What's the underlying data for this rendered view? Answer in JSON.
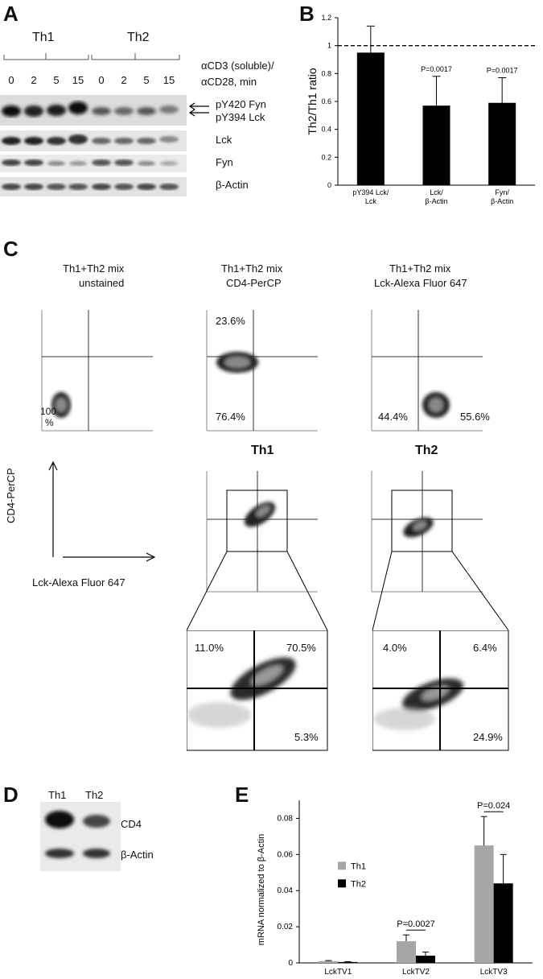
{
  "panels": {
    "a": "A",
    "b": "B",
    "c": "C",
    "d": "D",
    "e": "E"
  },
  "panelA": {
    "group1": "Th1",
    "group2": "Th2",
    "timepoints": [
      "0",
      "2",
      "5",
      "15",
      "0",
      "2",
      "5",
      "15"
    ],
    "stim_line1": "αCD3 (soluble)/",
    "stim_line2": "αCD28, min",
    "bands": {
      "pfyn": "pY420 Fyn",
      "plck": "pY394 Lck",
      "lck": "Lck",
      "fyn": "Fyn",
      "actin": "β-Actin"
    }
  },
  "panelC": {
    "titles": [
      {
        "l1": "Th1+Th2 mix",
        "l2": "unstained"
      },
      {
        "l1": "Th1+Th2 mix",
        "l2": "CD4-PerCP"
      },
      {
        "l1": "Th1+Th2 mix",
        "l2": "Lck-Alexa Fluor 647"
      }
    ],
    "unstained_pct": "100",
    "unstained_pct2": "%",
    "cd4_top": "23.6%",
    "cd4_bottom": "76.4%",
    "lck_left": "44.4%",
    "lck_right": "55.6%",
    "th1": "Th1",
    "th2": "Th2",
    "yaxis": "CD4-PerCP",
    "xaxis": "Lck-Alexa Fluor 647",
    "th1_zoom": {
      "ul": "11.0%",
      "ur": "70.5%",
      "lr": "5.3%"
    },
    "th2_zoom": {
      "ul": "4.0%",
      "ur": "6.4%",
      "lr": "24.9%"
    }
  },
  "panelD": {
    "th1": "Th1",
    "th2": "Th2",
    "cd4": "CD4",
    "actin": "β-Actin"
  },
  "chart_data": [
    {
      "type": "bar",
      "panel": "B",
      "categories": [
        "pY394 Lck/\nLck",
        "Lck/\nβ-Actin",
        "Fyn/\nβ-Actin"
      ],
      "category_lines": [
        [
          "pY394 Lck/",
          "Lck"
        ],
        [
          "Lck/",
          "β-Actin"
        ],
        [
          "Fyn/",
          "β-Actin"
        ]
      ],
      "values": [
        0.95,
        0.57,
        0.59
      ],
      "errors": [
        0.19,
        0.21,
        0.18
      ],
      "pvalues": [
        "",
        "P=0.0017",
        "P=0.0017"
      ],
      "ylabel": "Th2/Th1 ratio",
      "ylim": [
        0,
        1.2
      ],
      "yticks": [
        "0",
        "0.2",
        "0.4",
        "0.6",
        "0.8",
        "1",
        "1.2"
      ],
      "reference_line": 1,
      "bar_color": "#000000"
    },
    {
      "type": "bar",
      "panel": "E",
      "categories": [
        "LckTV1",
        "LckTV2",
        "LckTV3"
      ],
      "series": [
        {
          "name": "Th1",
          "values": [
            0.001,
            0.012,
            0.065
          ],
          "errors": [
            0.0003,
            0.0035,
            0.016
          ],
          "color": "#a6a6a6"
        },
        {
          "name": "Th2",
          "values": [
            0.0005,
            0.004,
            0.044
          ],
          "errors": [
            0.0002,
            0.002,
            0.016
          ],
          "color": "#000000"
        }
      ],
      "pvalues": [
        "",
        "P=0.0027",
        "P=0.024"
      ],
      "ylabel": "mRNA normalized to β-Actin",
      "ylim": [
        0,
        0.09
      ],
      "yticks": [
        "0",
        "0.02",
        "0.04",
        "0.06",
        "0.08"
      ],
      "legend": "inside-left"
    }
  ]
}
